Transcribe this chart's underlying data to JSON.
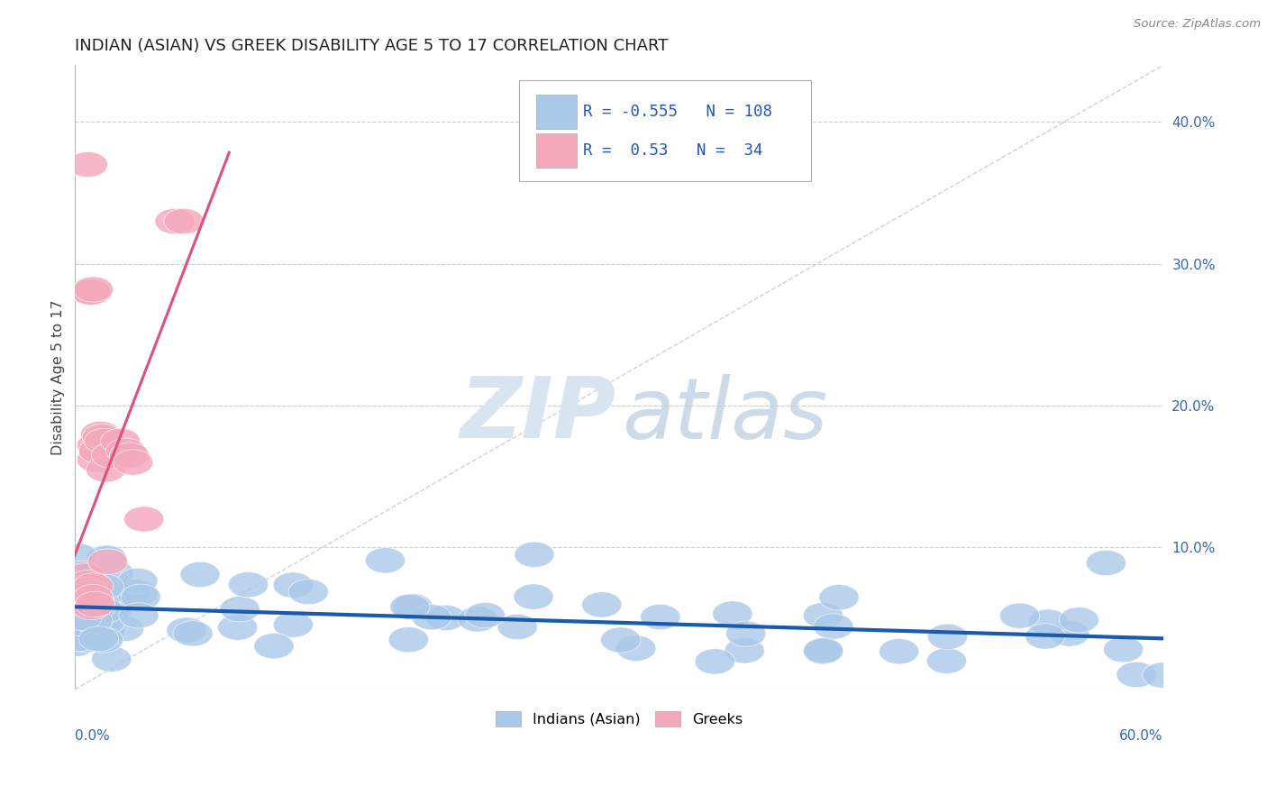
{
  "title": "INDIAN (ASIAN) VS GREEK DISABILITY AGE 5 TO 17 CORRELATION CHART",
  "source": "Source: ZipAtlas.com",
  "ylabel": "Disability Age 5 to 17",
  "right_yticks": [
    "10.0%",
    "20.0%",
    "30.0%",
    "40.0%"
  ],
  "right_ytick_vals": [
    0.1,
    0.2,
    0.3,
    0.4
  ],
  "xlim": [
    0.0,
    0.6
  ],
  "ylim": [
    0.0,
    0.44
  ],
  "indian_R": -0.555,
  "indian_N": 108,
  "greek_R": 0.53,
  "greek_N": 34,
  "legend_indian_label": "Indians (Asian)",
  "legend_greek_label": "Greeks",
  "indian_color": "#aac8e8",
  "greek_color": "#f4a8bc",
  "indian_line_color": "#1a5aaa",
  "greek_line_color": "#e0507a",
  "background_color": "#ffffff",
  "grid_color": "#c8c8c8",
  "title_color": "#333333",
  "watermark_zip_color": "#d8e4f0",
  "watermark_atlas_color": "#b8cce0",
  "diag_line_color": "#c0c8d4",
  "legend_box_color": "#f0f4f8",
  "indian_seed": 12345,
  "greek_seed": 67890
}
